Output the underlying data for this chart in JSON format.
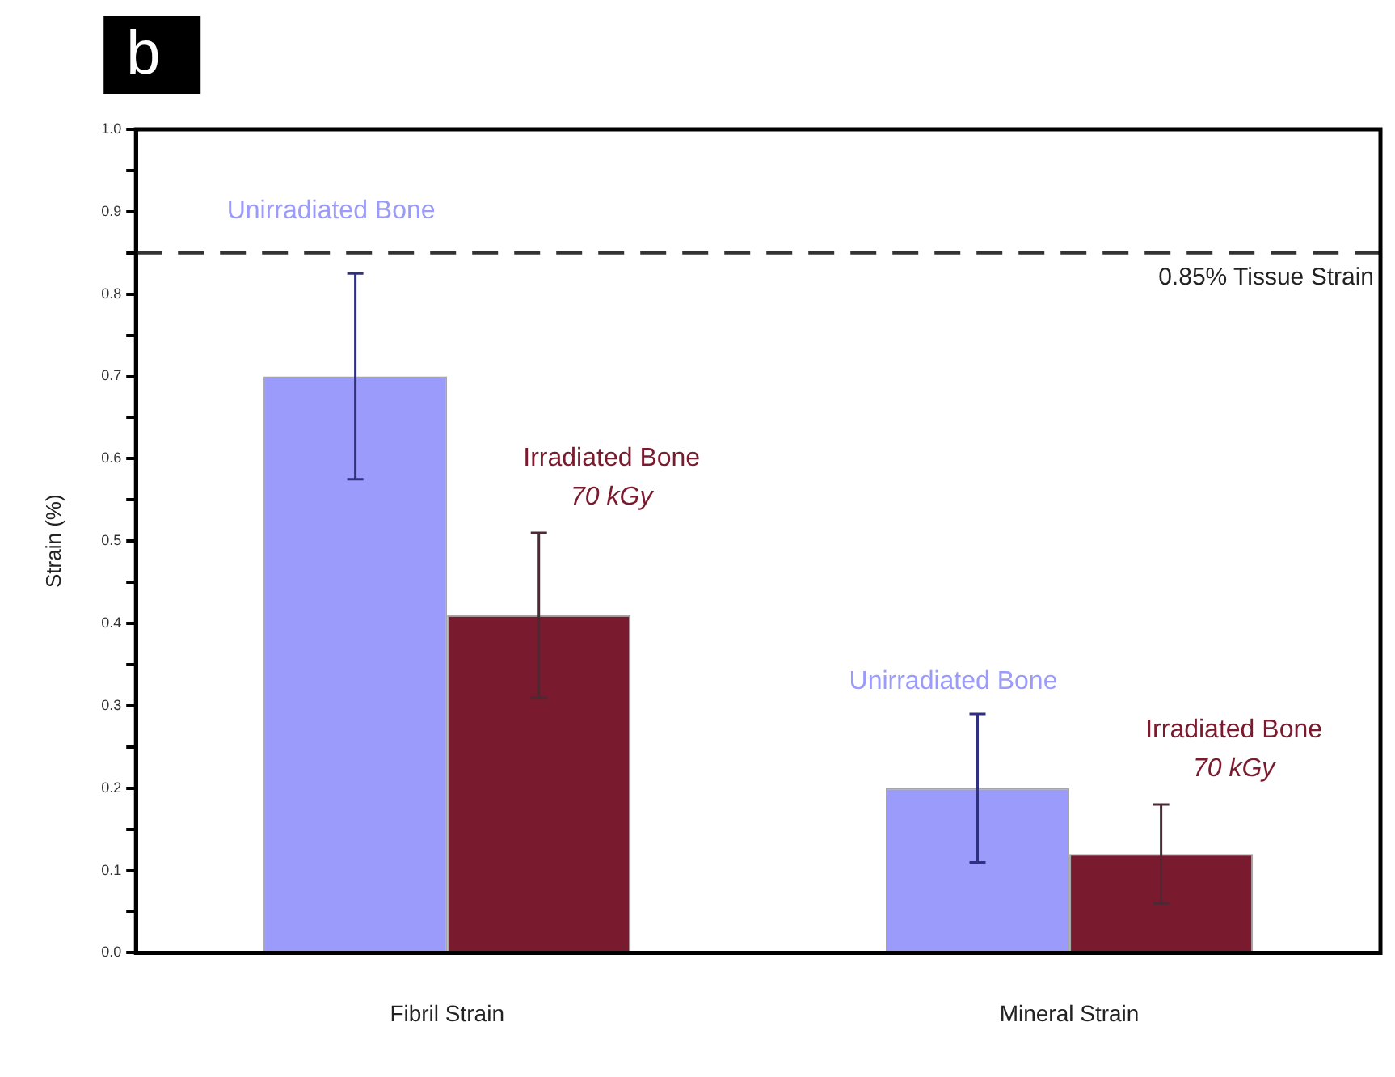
{
  "chart_data": {
    "type": "bar",
    "ylabel": "Strain (%)",
    "categories": [
      "Fibril Strain",
      "Mineral Strain"
    ],
    "series": [
      {
        "name": "Unirradiated Bone",
        "color": "#9b9bfb",
        "values": [
          0.7,
          0.2
        ],
        "errors": [
          0.125,
          0.09
        ]
      },
      {
        "name": "Irradiated Bone\n70 kGy",
        "color": "#7a1a2e",
        "values": [
          0.41,
          0.12
        ],
        "errors": [
          0.1,
          0.06
        ]
      }
    ],
    "ylim": [
      0,
      1
    ],
    "yticks": [
      {
        "value": 0,
        "label": "0.0"
      },
      {
        "value": 0.05,
        "label": null
      },
      0.1,
      {
        "value": 0.15,
        "label": null
      },
      0.2,
      {
        "value": 0.25,
        "label": null
      },
      0.3,
      {
        "value": 0.35,
        "label": null
      },
      0.4,
      {
        "value": 0.45,
        "label": null
      },
      0.5,
      {
        "value": 0.55,
        "label": null
      },
      0.6,
      {
        "value": 0.65,
        "label": null
      },
      0.7,
      {
        "value": 0.75,
        "label": null
      },
      0.8,
      {
        "value": 0.85,
        "label": null
      },
      0.9,
      {
        "value": 0.95,
        "label": null
      },
      {
        "value": 1,
        "label": "1.0"
      }
    ],
    "ref_lines": [
      {
        "axis": "y",
        "value": 0.85,
        "label": "0.85% Tissue Strain",
        "line_style": "dashed",
        "color": "#333333"
      }
    ],
    "annotations": [
      "b"
    ],
    "grid": false,
    "legend": false
  }
}
